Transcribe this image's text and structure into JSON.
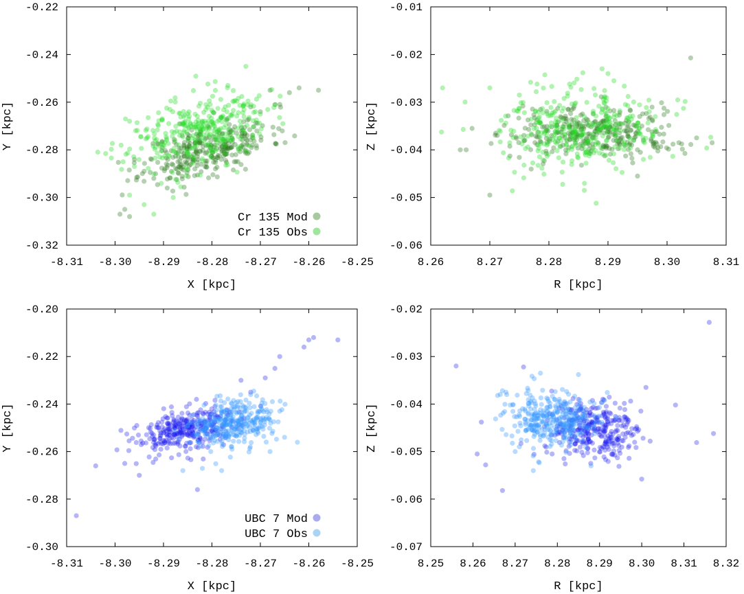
{
  "chart_data": [
    {
      "type": "scatter",
      "xlabel": "X [kpc]",
      "ylabel": "Y [kpc]",
      "xlim": [
        -8.31,
        -8.25
      ],
      "ylim": [
        -0.32,
        -0.22
      ],
      "xticks": [
        "-8.31",
        "-8.30",
        "-8.29",
        "-8.28",
        "-8.27",
        "-8.26",
        "-8.25"
      ],
      "yticks": [
        "-0.32",
        "-0.30",
        "-0.28",
        "-0.26",
        "-0.24",
        "-0.22"
      ],
      "legend_position": "bottom-right",
      "series": [
        {
          "name": "Cr 135 Mod",
          "color": "#2f7a1f",
          "legend_color": "#a8c89e",
          "opacity": 0.35,
          "cloud": {
            "cx": -8.281,
            "cy": -0.28,
            "sx": 0.0065,
            "sy": 0.0065,
            "rho": 0.55,
            "n": 320,
            "seed": 11
          },
          "points": [
            [
              -8.299,
              -0.307
            ],
            [
              -8.298,
              -0.305
            ],
            [
              -8.297,
              -0.308
            ],
            [
              -8.258,
              -0.255
            ],
            [
              -8.262,
              -0.254
            ],
            [
              -8.264,
              -0.256
            ],
            [
              -8.267,
              -0.261
            ],
            [
              -8.27,
              -0.264
            ],
            [
              -8.272,
              -0.262
            ],
            [
              -8.268,
              -0.255
            ],
            [
              -8.294,
              -0.289
            ],
            [
              -8.292,
              -0.292
            ],
            [
              -8.296,
              -0.284
            ]
          ]
        },
        {
          "name": "Cr 135 Obs",
          "color": "#22dd22",
          "legend_color": "#9ee69e",
          "opacity": 0.35,
          "cloud": {
            "cx": -8.283,
            "cy": -0.272,
            "sx": 0.007,
            "sy": 0.008,
            "rho": 0.35,
            "n": 320,
            "seed": 23
          },
          "points": [
            [
              -8.273,
              -0.245
            ],
            [
              -8.297,
              -0.268
            ],
            [
              -8.296,
              -0.287
            ],
            [
              -8.294,
              -0.303
            ],
            [
              -8.292,
              -0.307
            ],
            [
              -8.297,
              -0.299
            ],
            [
              -8.288,
              -0.3
            ],
            [
              -8.271,
              -0.264
            ],
            [
              -8.27,
              -0.265
            ]
          ]
        }
      ]
    },
    {
      "type": "scatter",
      "xlabel": "R [kpc]",
      "ylabel": "Z [kpc]",
      "xlim": [
        8.26,
        8.31
      ],
      "ylim": [
        -0.06,
        -0.01
      ],
      "xticks": [
        "8.26",
        "8.27",
        "8.28",
        "8.29",
        "8.30",
        "8.31"
      ],
      "yticks": [
        "-0.06",
        "-0.05",
        "-0.04",
        "-0.03",
        "-0.02",
        "-0.01"
      ],
      "series": [
        {
          "name": "Cr 135 Mod",
          "color": "#2f7a1f",
          "opacity": 0.35,
          "cloud": {
            "cx": 8.287,
            "cy": -0.0365,
            "sx": 0.0075,
            "sy": 0.0026,
            "rho": 0.0,
            "n": 320,
            "seed": 31
          },
          "points": [
            [
              8.304,
              -0.0207
            ],
            [
              8.305,
              -0.0375
            ],
            [
              8.302,
              -0.0385
            ],
            [
              8.301,
              -0.0388
            ],
            [
              8.265,
              -0.04
            ],
            [
              8.266,
              -0.04
            ],
            [
              8.267,
              -0.0355
            ],
            [
              8.27,
              -0.0495
            ],
            [
              8.271,
              -0.0365
            ],
            [
              8.295,
              -0.0455
            ]
          ]
        },
        {
          "name": "Cr 135 Obs",
          "color": "#22dd22",
          "opacity": 0.35,
          "cloud": {
            "cx": 8.285,
            "cy": -0.036,
            "sx": 0.007,
            "sy": 0.004,
            "rho": 0.0,
            "n": 320,
            "seed": 47
          },
          "points": [
            [
              8.262,
              -0.027
            ],
            [
              8.27,
              -0.027
            ],
            [
              8.289,
              -0.023
            ],
            [
              8.29,
              -0.024
            ],
            [
              8.291,
              -0.0255
            ],
            [
              8.288,
              -0.0512
            ],
            [
              8.286,
              -0.0485
            ],
            [
              8.296,
              -0.042
            ],
            [
              8.297,
              -0.032
            ],
            [
              8.278,
              -0.0262
            ],
            [
              8.275,
              -0.0285
            ]
          ]
        }
      ]
    },
    {
      "type": "scatter",
      "xlabel": "X [kpc]",
      "ylabel": "Y [kpc]",
      "xlim": [
        -8.31,
        -8.25
      ],
      "ylim": [
        -0.3,
        -0.2
      ],
      "xticks": [
        "-8.31",
        "-8.30",
        "-8.29",
        "-8.28",
        "-8.27",
        "-8.26",
        "-8.25"
      ],
      "yticks": [
        "-0.30",
        "-0.28",
        "-0.26",
        "-0.24",
        "-0.22",
        "-0.20"
      ],
      "legend_position": "bottom-right",
      "series": [
        {
          "name": "UBC 7 Mod",
          "color": "#1a1aee",
          "legend_color": "#aaaaee",
          "opacity": 0.32,
          "cloud": {
            "cx": -8.285,
            "cy": -0.251,
            "sx": 0.0055,
            "sy": 0.005,
            "rho": 0.45,
            "n": 320,
            "seed": 53
          },
          "points": [
            [
              -8.308,
              -0.287
            ],
            [
              -8.304,
              -0.266
            ],
            [
              -8.298,
              -0.265
            ],
            [
              -8.295,
              -0.27
            ],
            [
              -8.254,
              -0.213
            ],
            [
              -8.259,
              -0.212
            ],
            [
              -8.26,
              -0.213
            ],
            [
              -8.261,
              -0.216
            ],
            [
              -8.266,
              -0.22
            ],
            [
              -8.267,
              -0.225
            ],
            [
              -8.269,
              -0.229
            ],
            [
              -8.272,
              -0.235
            ],
            [
              -8.274,
              -0.23
            ],
            [
              -8.283,
              -0.276
            ]
          ]
        },
        {
          "name": "UBC 7 Obs",
          "color": "#3399ff",
          "legend_color": "#aad4f5",
          "opacity": 0.35,
          "cloud": {
            "cx": -8.276,
            "cy": -0.249,
            "sx": 0.004,
            "sy": 0.005,
            "rho": 0.2,
            "n": 320,
            "seed": 67
          },
          "points": [
            [
              -8.286,
              -0.268
            ],
            [
              -8.278,
              -0.268
            ],
            [
              -8.265,
              -0.254
            ],
            [
              -8.266,
              -0.243
            ],
            [
              -8.268,
              -0.26
            ],
            [
              -8.272,
              -0.236
            ]
          ]
        }
      ]
    },
    {
      "type": "scatter",
      "xlabel": "R [kpc]",
      "ylabel": "Z [kpc]",
      "xlim": [
        8.25,
        8.32
      ],
      "ylim": [
        -0.07,
        -0.02
      ],
      "xticks": [
        "8.25",
        "8.26",
        "8.27",
        "8.28",
        "8.29",
        "8.30",
        "8.31",
        "8.32"
      ],
      "yticks": [
        "-0.07",
        "-0.06",
        "-0.05",
        "-0.04",
        "-0.03",
        "-0.02"
      ],
      "series": [
        {
          "name": "UBC 7 Mod",
          "color": "#1a1aee",
          "opacity": 0.32,
          "cloud": {
            "cx": 8.2885,
            "cy": -0.0452,
            "sx": 0.0055,
            "sy": 0.003,
            "rho": 0.0,
            "n": 320,
            "seed": 79
          },
          "points": [
            [
              8.316,
              -0.0228
            ],
            [
              8.256,
              -0.032
            ],
            [
              8.261,
              -0.0505
            ],
            [
              8.262,
              -0.0438
            ],
            [
              8.263,
              -0.0528
            ],
            [
              8.267,
              -0.0582
            ],
            [
              8.272,
              -0.0322
            ],
            [
              8.297,
              -0.0488
            ],
            [
              8.3,
              -0.0558
            ],
            [
              8.302,
              -0.0478
            ],
            [
              8.308,
              -0.0402
            ],
            [
              8.313,
              -0.0481
            ],
            [
              8.317,
              -0.0462
            ],
            [
              8.301,
              -0.0365
            ]
          ]
        },
        {
          "name": "UBC 7 Obs",
          "color": "#3399ff",
          "opacity": 0.35,
          "cloud": {
            "cx": 8.279,
            "cy": -0.0432,
            "sx": 0.0055,
            "sy": 0.003,
            "rho": 0.0,
            "n": 320,
            "seed": 89
          },
          "points": [
            [
              8.267,
              -0.0372
            ],
            [
              8.27,
              -0.05
            ],
            [
              8.276,
              -0.0335
            ],
            [
              8.285,
              -0.0338
            ],
            [
              8.288,
              -0.053
            ],
            [
              8.268,
              -0.038
            ]
          ]
        }
      ]
    }
  ]
}
